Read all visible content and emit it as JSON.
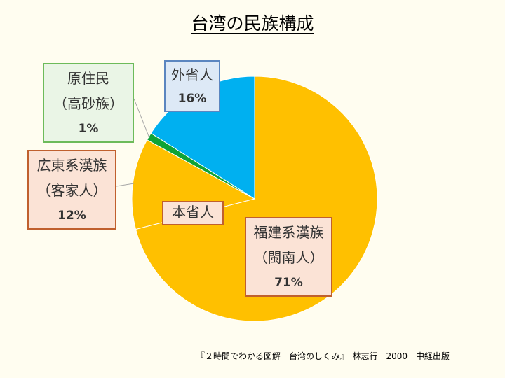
{
  "title": "台湾の民族構成",
  "source": "『２時間でわかる図解　台湾のしくみ』　林志行　2000　中経出版",
  "colors": {
    "fukken": "#ffc000",
    "kanton": "#ffc000",
    "gensumin": "#0fa336",
    "gaishou": "#00b0f0"
  },
  "chart_data": {
    "type": "pie",
    "title": "台湾の民族構成",
    "start_angle_deg": 0,
    "direction": "clockwise",
    "slices": [
      {
        "key": "fukken",
        "label_lines": [
          "福建系漢族",
          "（閩南人）"
        ],
        "value": 71,
        "value_label": "71%",
        "color": "#ffc000"
      },
      {
        "key": "kanton",
        "label_lines": [
          "広東系漢族",
          "（客家人）"
        ],
        "value": 12,
        "value_label": "12%",
        "color": "#ffc000"
      },
      {
        "key": "gensumin",
        "label_lines": [
          "原住民",
          "（高砂族）"
        ],
        "value": 1,
        "value_label": "1%",
        "color": "#0fa336"
      },
      {
        "key": "gaishou",
        "label_lines": [
          "外省人"
        ],
        "value": 16,
        "value_label": "16%",
        "color": "#00b0f0"
      }
    ],
    "group_label": "本省人"
  }
}
